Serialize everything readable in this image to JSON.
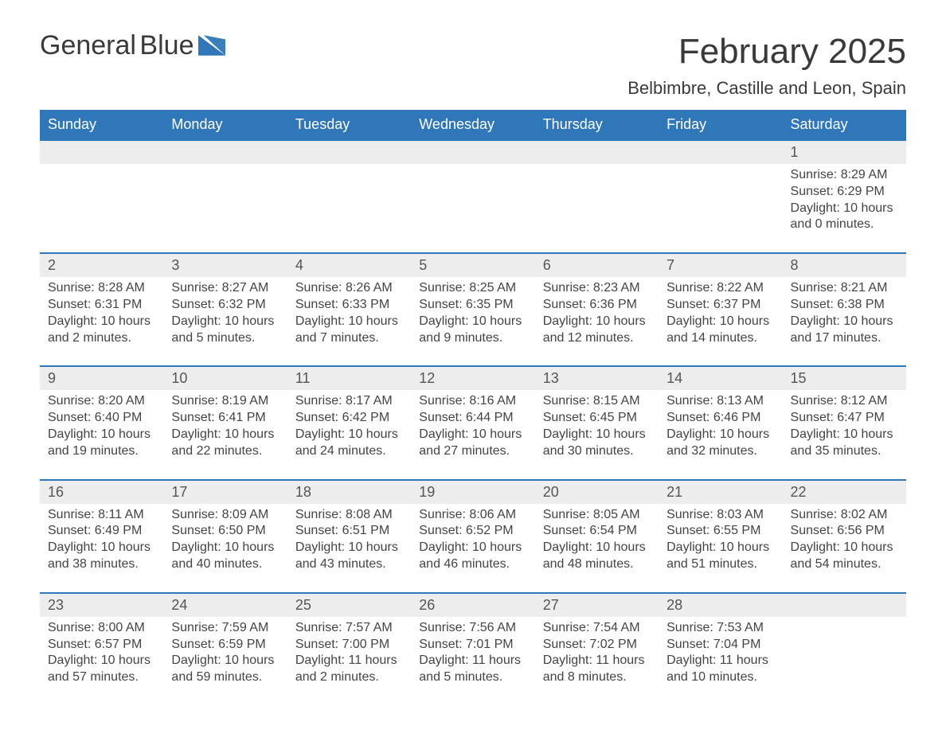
{
  "brand": {
    "name_part1": "General",
    "name_part2": "Blue",
    "logo_color": "#2F77B8"
  },
  "header": {
    "title": "February 2025",
    "location": "Belbimbre, Castille and Leon, Spain"
  },
  "styling": {
    "header_bg": "#2F77B8",
    "header_text": "#ffffff",
    "daynum_bg": "#EDEDED",
    "daynum_border_top": "#2F77B8",
    "body_text": "#444444",
    "title_color": "#3a3a3a",
    "font_family": "Segoe UI / Helvetica Neue",
    "title_fontsize_pt": 33,
    "location_fontsize_pt": 17,
    "dayheader_fontsize_pt": 14,
    "daynum_fontsize_pt": 14,
    "detail_fontsize_pt": 12
  },
  "calendar": {
    "type": "table",
    "day_headers": [
      "Sunday",
      "Monday",
      "Tuesday",
      "Wednesday",
      "Thursday",
      "Friday",
      "Saturday"
    ],
    "weeks": [
      [
        null,
        null,
        null,
        null,
        null,
        null,
        {
          "n": "1",
          "sunrise": "8:29 AM",
          "sunset": "6:29 PM",
          "daylight": "10 hours and 0 minutes."
        }
      ],
      [
        {
          "n": "2",
          "sunrise": "8:28 AM",
          "sunset": "6:31 PM",
          "daylight": "10 hours and 2 minutes."
        },
        {
          "n": "3",
          "sunrise": "8:27 AM",
          "sunset": "6:32 PM",
          "daylight": "10 hours and 5 minutes."
        },
        {
          "n": "4",
          "sunrise": "8:26 AM",
          "sunset": "6:33 PM",
          "daylight": "10 hours and 7 minutes."
        },
        {
          "n": "5",
          "sunrise": "8:25 AM",
          "sunset": "6:35 PM",
          "daylight": "10 hours and 9 minutes."
        },
        {
          "n": "6",
          "sunrise": "8:23 AM",
          "sunset": "6:36 PM",
          "daylight": "10 hours and 12 minutes."
        },
        {
          "n": "7",
          "sunrise": "8:22 AM",
          "sunset": "6:37 PM",
          "daylight": "10 hours and 14 minutes."
        },
        {
          "n": "8",
          "sunrise": "8:21 AM",
          "sunset": "6:38 PM",
          "daylight": "10 hours and 17 minutes."
        }
      ],
      [
        {
          "n": "9",
          "sunrise": "8:20 AM",
          "sunset": "6:40 PM",
          "daylight": "10 hours and 19 minutes."
        },
        {
          "n": "10",
          "sunrise": "8:19 AM",
          "sunset": "6:41 PM",
          "daylight": "10 hours and 22 minutes."
        },
        {
          "n": "11",
          "sunrise": "8:17 AM",
          "sunset": "6:42 PM",
          "daylight": "10 hours and 24 minutes."
        },
        {
          "n": "12",
          "sunrise": "8:16 AM",
          "sunset": "6:44 PM",
          "daylight": "10 hours and 27 minutes."
        },
        {
          "n": "13",
          "sunrise": "8:15 AM",
          "sunset": "6:45 PM",
          "daylight": "10 hours and 30 minutes."
        },
        {
          "n": "14",
          "sunrise": "8:13 AM",
          "sunset": "6:46 PM",
          "daylight": "10 hours and 32 minutes."
        },
        {
          "n": "15",
          "sunrise": "8:12 AM",
          "sunset": "6:47 PM",
          "daylight": "10 hours and 35 minutes."
        }
      ],
      [
        {
          "n": "16",
          "sunrise": "8:11 AM",
          "sunset": "6:49 PM",
          "daylight": "10 hours and 38 minutes."
        },
        {
          "n": "17",
          "sunrise": "8:09 AM",
          "sunset": "6:50 PM",
          "daylight": "10 hours and 40 minutes."
        },
        {
          "n": "18",
          "sunrise": "8:08 AM",
          "sunset": "6:51 PM",
          "daylight": "10 hours and 43 minutes."
        },
        {
          "n": "19",
          "sunrise": "8:06 AM",
          "sunset": "6:52 PM",
          "daylight": "10 hours and 46 minutes."
        },
        {
          "n": "20",
          "sunrise": "8:05 AM",
          "sunset": "6:54 PM",
          "daylight": "10 hours and 48 minutes."
        },
        {
          "n": "21",
          "sunrise": "8:03 AM",
          "sunset": "6:55 PM",
          "daylight": "10 hours and 51 minutes."
        },
        {
          "n": "22",
          "sunrise": "8:02 AM",
          "sunset": "6:56 PM",
          "daylight": "10 hours and 54 minutes."
        }
      ],
      [
        {
          "n": "23",
          "sunrise": "8:00 AM",
          "sunset": "6:57 PM",
          "daylight": "10 hours and 57 minutes."
        },
        {
          "n": "24",
          "sunrise": "7:59 AM",
          "sunset": "6:59 PM",
          "daylight": "10 hours and 59 minutes."
        },
        {
          "n": "25",
          "sunrise": "7:57 AM",
          "sunset": "7:00 PM",
          "daylight": "11 hours and 2 minutes."
        },
        {
          "n": "26",
          "sunrise": "7:56 AM",
          "sunset": "7:01 PM",
          "daylight": "11 hours and 5 minutes."
        },
        {
          "n": "27",
          "sunrise": "7:54 AM",
          "sunset": "7:02 PM",
          "daylight": "11 hours and 8 minutes."
        },
        {
          "n": "28",
          "sunrise": "7:53 AM",
          "sunset": "7:04 PM",
          "daylight": "11 hours and 10 minutes."
        },
        null
      ]
    ],
    "labels": {
      "sunrise": "Sunrise:",
      "sunset": "Sunset:",
      "daylight": "Daylight:"
    }
  }
}
